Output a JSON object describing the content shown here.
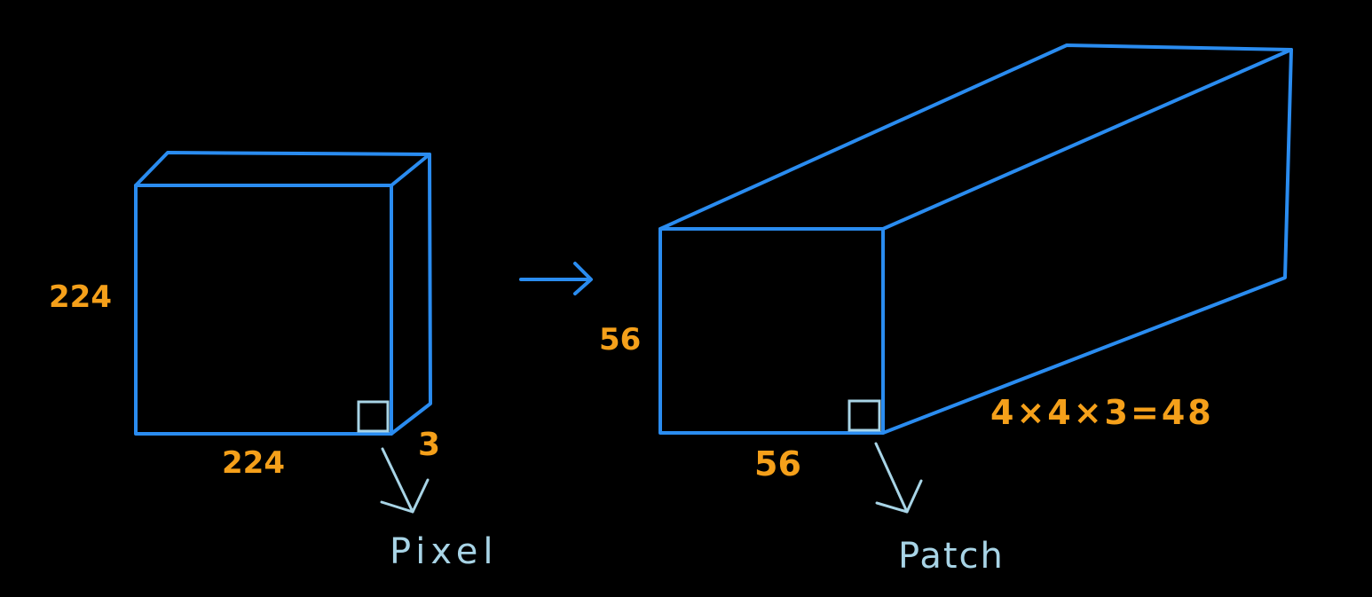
{
  "colors": {
    "background": "#000000",
    "outline": "#2a8cf0",
    "dimension_label": "#f5a01a",
    "unit_label": "#a8d4e6"
  },
  "left_block": {
    "height_label": "224",
    "width_label": "224",
    "depth_label": "3",
    "unit_label": "Pixel"
  },
  "right_block": {
    "height_label": "56",
    "width_label": "56",
    "depth_label": "4×4×3=48",
    "unit_label": "Patch"
  }
}
